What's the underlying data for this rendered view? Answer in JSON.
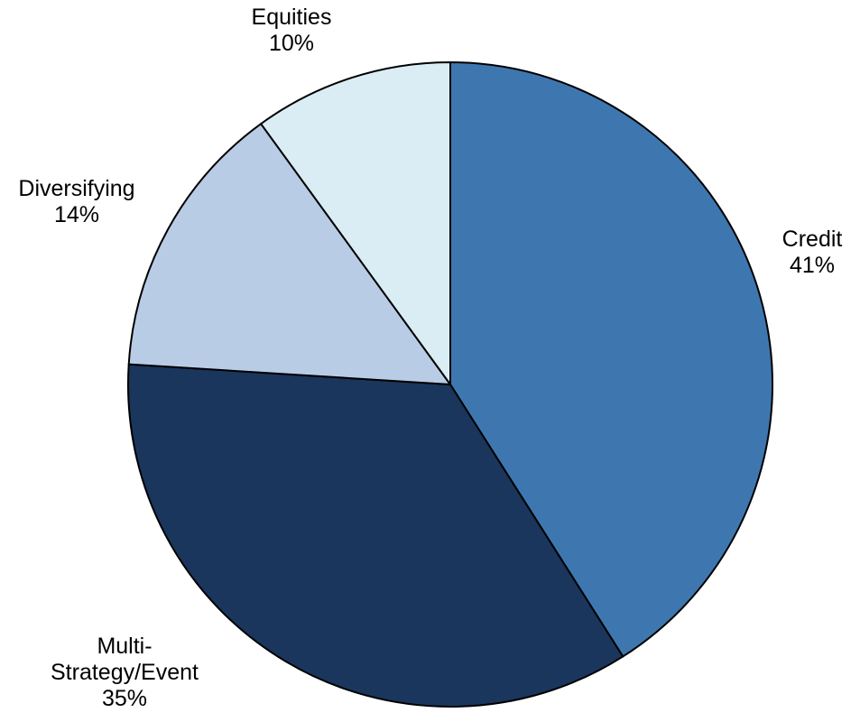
{
  "chart_data": {
    "type": "pie",
    "title": "",
    "start_angle_deg": 0,
    "direction": "clockwise",
    "slices": [
      {
        "label_lines": [
          "Credit"
        ],
        "value_label": "41%",
        "value": 41,
        "color": "#3e77b0"
      },
      {
        "label_lines": [
          "Multi-",
          "Strategy/Event"
        ],
        "value_label": "35%",
        "value": 35,
        "color": "#1a365d"
      },
      {
        "label_lines": [
          "Diversifying"
        ],
        "value_label": "14%",
        "value": 14,
        "color": "#b9cce6"
      },
      {
        "label_lines": [
          "Equities"
        ],
        "value_label": "10%",
        "value": 10,
        "color": "#dbedf4"
      }
    ]
  }
}
